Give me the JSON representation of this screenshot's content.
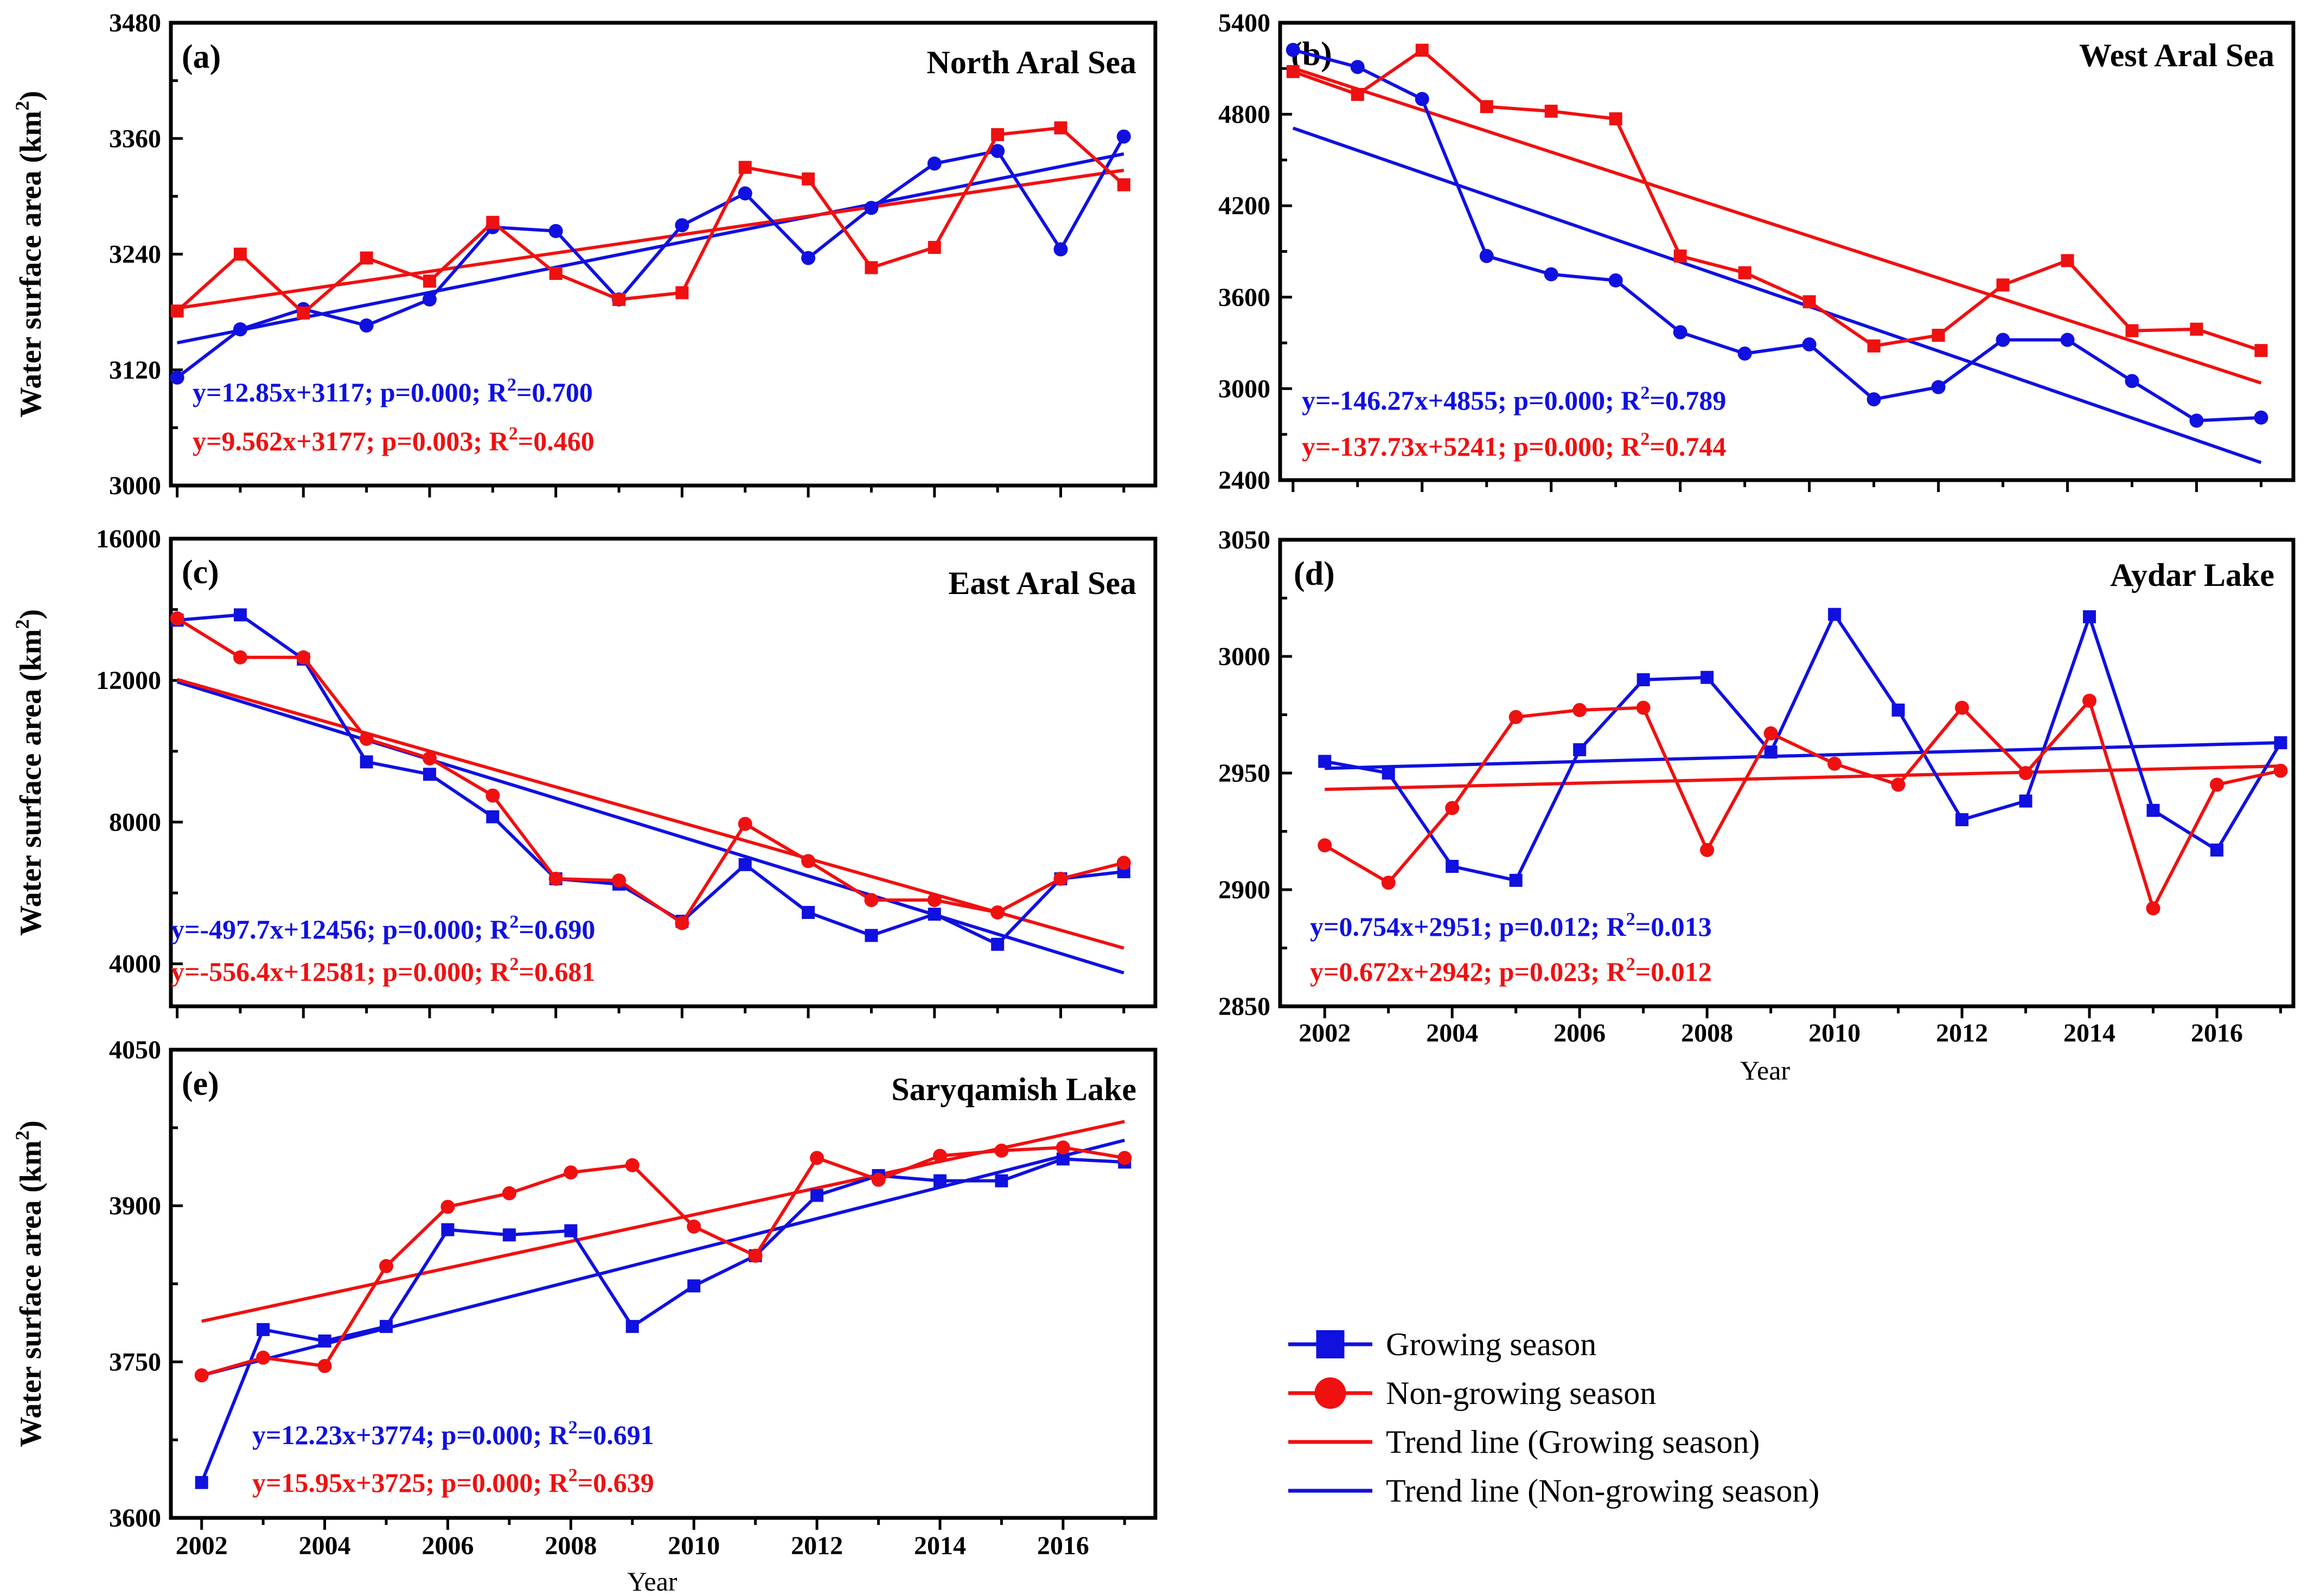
{
  "colors": {
    "blue": "#1010e0",
    "red": "#f01010"
  },
  "chart_data": [
    {
      "id": "a",
      "type": "line",
      "tag": "(a)",
      "title": "North Aral Sea",
      "ylabel": "Water surface area (km",
      "ylabel_sup": "2",
      "ylabel_close": ")",
      "xlabel": "",
      "xlim": [
        2001.9,
        2017.5
      ],
      "ylim": [
        3000,
        3480
      ],
      "yticks": [
        "3000",
        "3120",
        "3240",
        "3360",
        "3480"
      ],
      "xticks": [],
      "x": [
        2002,
        2003,
        2004,
        2005,
        2006,
        2007,
        2008,
        2009,
        2010,
        2011,
        2012,
        2013,
        2014,
        2015,
        2016,
        2017
      ],
      "series": [
        {
          "name": "Growing season",
          "color": "blue",
          "marker": "circle",
          "values": [
            3112,
            3162,
            3183,
            3166,
            3193,
            3268,
            3264,
            3193,
            3270,
            3303,
            3236,
            3288,
            3334,
            3347,
            3245,
            3362
          ]
        },
        {
          "name": "Non-growing season",
          "color": "red",
          "marker": "square",
          "values": [
            3181,
            3240,
            3179,
            3236,
            3212,
            3273,
            3220,
            3193,
            3200,
            3330,
            3318,
            3226,
            3247,
            3364,
            3371,
            3312
          ]
        }
      ],
      "trends": [
        {
          "color": "blue",
          "x": [
            2002,
            2017
          ],
          "y": [
            3148,
            3344
          ]
        },
        {
          "color": "red",
          "x": [
            2002,
            2017
          ],
          "y": [
            3184,
            3327
          ]
        }
      ],
      "equations": [
        {
          "color": "blue",
          "pre": "y=12.85x+3117; p=0.000; R",
          "sup": "2",
          "post": "=0.700"
        },
        {
          "color": "red",
          "pre": "y=9.562x+3177; p=0.003; R",
          "sup": "2",
          "post": "=0.460"
        }
      ]
    },
    {
      "id": "b",
      "type": "line",
      "tag": "(b)",
      "title": "West Aral Sea",
      "ylabel": "",
      "ylabel_sup": "",
      "ylabel_close": "",
      "xlabel": "",
      "xlim": [
        2001.8,
        2017.5
      ],
      "ylim": [
        2400,
        5400
      ],
      "yticks": [
        "2400",
        "3000",
        "3600",
        "4200",
        "4800",
        "5400"
      ],
      "xticks": [],
      "x": [
        2002,
        2003,
        2004,
        2005,
        2006,
        2007,
        2008,
        2009,
        2010,
        2011,
        2012,
        2013,
        2014,
        2015,
        2016,
        2017
      ],
      "series": [
        {
          "name": "Growing season",
          "color": "blue",
          "marker": "circle",
          "values": [
            5222,
            5110,
            4900,
            3870,
            3750,
            3710,
            3370,
            3230,
            3290,
            2930,
            3010,
            3320,
            3320,
            3050,
            2790,
            2810
          ]
        },
        {
          "name": "Non-growing season",
          "color": "red",
          "marker": "square",
          "values": [
            5080,
            4930,
            5220,
            4850,
            4820,
            4770,
            3870,
            3760,
            3570,
            3280,
            3350,
            3680,
            3840,
            3380,
            3390,
            3250
          ]
        }
      ],
      "trends": [
        {
          "color": "blue",
          "x": [
            2002,
            2017
          ],
          "y": [
            4709,
            2515
          ]
        },
        {
          "color": "red",
          "x": [
            2002,
            2017
          ],
          "y": [
            5103,
            3037
          ]
        }
      ],
      "equations": [
        {
          "color": "blue",
          "pre": "y=-146.27x+4855; p=0.000; R",
          "sup": "2",
          "post": "=0.789"
        },
        {
          "color": "red",
          "pre": "y=-137.73x+5241; p=0.000; R",
          "sup": "2",
          "post": "=0.744"
        }
      ]
    },
    {
      "id": "c",
      "type": "line",
      "tag": "(c)",
      "title": "East Aral Sea",
      "ylabel": "Water surface area (km",
      "ylabel_sup": "2",
      "ylabel_close": ")",
      "xlabel": "",
      "xlim": [
        2001.9,
        2017.5
      ],
      "ylim": [
        2800,
        16000
      ],
      "yticks": [
        "4000",
        "8000",
        "12000",
        "16000"
      ],
      "xticks": [],
      "x": [
        2002,
        2003,
        2004,
        2005,
        2006,
        2007,
        2008,
        2009,
        2010,
        2011,
        2012,
        2013,
        2014,
        2015,
        2016,
        2017
      ],
      "series": [
        {
          "name": "Growing season",
          "color": "blue",
          "marker": "square",
          "values": [
            13700,
            13850,
            12600,
            9700,
            9350,
            8150,
            6400,
            6250,
            5200,
            6800,
            5450,
            4800,
            5400,
            4550,
            6400,
            6600
          ]
        },
        {
          "name": "Non-growing season",
          "color": "red",
          "marker": "circle",
          "values": [
            13750,
            12650,
            12650,
            10350,
            9800,
            8750,
            6400,
            6350,
            5150,
            7950,
            6900,
            5800,
            5800,
            5450,
            6400,
            6850
          ]
        }
      ],
      "trends": [
        {
          "color": "blue",
          "x": [
            2002,
            2017
          ],
          "y": [
            11958,
            3743
          ]
        },
        {
          "color": "red",
          "x": [
            2002,
            2017
          ],
          "y": [
            12025,
            4443
          ]
        }
      ],
      "equations": [
        {
          "color": "blue",
          "pre": "y=-497.7x+12456; p=0.000; R",
          "sup": "2",
          "post": "=0.690"
        },
        {
          "color": "red",
          "pre": "y=-556.4x+12581; p=0.000; R",
          "sup": "2",
          "post": "=0.681"
        }
      ]
    },
    {
      "id": "d",
      "type": "line",
      "tag": "(d)",
      "title": "Aydar Lake",
      "ylabel": "",
      "ylabel_sup": "",
      "ylabel_close": "",
      "xlabel": "Year",
      "xlim": [
        2001.3,
        2017.2
      ],
      "ylim": [
        2850,
        3050
      ],
      "yticks": [
        "2850",
        "2900",
        "2950",
        "3000",
        "3050"
      ],
      "xticks": [
        "2002",
        "2004",
        "2006",
        "2008",
        "2010",
        "2012",
        "2014",
        "2016"
      ],
      "x": [
        2002,
        2003,
        2004,
        2005,
        2006,
        2007,
        2008,
        2009,
        2010,
        2011,
        2012,
        2013,
        2014,
        2015,
        2016,
        2017
      ],
      "series": [
        {
          "name": "Growing season",
          "color": "blue",
          "marker": "square",
          "values": [
            2955,
            2950,
            2910,
            2904,
            2960,
            2990,
            2991,
            2959,
            3018,
            2977,
            2930,
            2938,
            3017,
            2934,
            2917,
            2963
          ]
        },
        {
          "name": "Non-growing season",
          "color": "red",
          "marker": "circle",
          "values": [
            2919,
            2903,
            2935,
            2974,
            2977,
            2978,
            2917,
            2967,
            2954,
            2945,
            2978,
            2950,
            2981,
            2892,
            2945,
            2951
          ]
        }
      ],
      "trends": [
        {
          "color": "blue",
          "x": [
            2002,
            2017
          ],
          "y": [
            2952,
            2963
          ]
        },
        {
          "color": "red",
          "x": [
            2002,
            2017
          ],
          "y": [
            2943,
            2953
          ]
        }
      ],
      "equations": [
        {
          "color": "blue",
          "pre": "y=0.754x+2951; p=0.012; R",
          "sup": "2",
          "post": "=0.013"
        },
        {
          "color": "red",
          "pre": "y=0.672x+2942; p=0.023; R",
          "sup": "2",
          "post": "=0.012"
        }
      ]
    },
    {
      "id": "e",
      "type": "line",
      "tag": "(e)",
      "title": "Saryqamish Lake",
      "ylabel": "Water surface area (km",
      "ylabel_sup": "2",
      "ylabel_close": ")",
      "xlabel": "Year",
      "xlim": [
        2001.5,
        2017.5
      ],
      "ylim": [
        3600,
        4050
      ],
      "yticks": [
        "3600",
        "3750",
        "3900",
        "4050"
      ],
      "xticks": [
        "2002",
        "2004",
        "2006",
        "2008",
        "2010",
        "2012",
        "2014",
        "2016"
      ],
      "x": [
        2002,
        2003,
        2004,
        2005,
        2006,
        2007,
        2008,
        2009,
        2010,
        2011,
        2012,
        2013,
        2014,
        2015,
        2016,
        2017
      ],
      "series": [
        {
          "name": "Growing season",
          "color": "blue",
          "marker": "square",
          "values": [
            3634,
            3781,
            3770,
            3784,
            3877,
            3872,
            3876,
            3784,
            3823,
            3852,
            3910,
            3929,
            3924,
            3924,
            3945,
            3942
          ]
        },
        {
          "name": "Non-growing season",
          "color": "red",
          "marker": "circle",
          "values": [
            3737,
            3754,
            3746,
            3842,
            3899,
            3912,
            3932,
            3939,
            3880,
            3852,
            3946,
            3925,
            3948,
            3953,
            3956,
            3946
          ]
        }
      ],
      "trends": [
        {
          "color": "blue",
          "x": [
            2002,
            2017
          ],
          "y": [
            3737,
            3963
          ]
        },
        {
          "color": "red",
          "x": [
            2002,
            2017
          ],
          "y": [
            3789,
            3981
          ]
        }
      ],
      "equations": [
        {
          "color": "blue",
          "pre": "y=12.23x+3774; p=0.000; R",
          "sup": "2",
          "post": "=0.691"
        },
        {
          "color": "red",
          "pre": "y=15.95x+3725; p=0.000; R",
          "sup": "2",
          "post": "=0.639"
        }
      ]
    }
  ],
  "legend": {
    "items": [
      {
        "label": "Growing season",
        "color": "blue",
        "kind": "square-marker"
      },
      {
        "label": "Non-growing season",
        "color": "red",
        "kind": "circle-marker"
      },
      {
        "label": "Trend line (Growing season)",
        "color": "red",
        "kind": "line"
      },
      {
        "label": "Trend line (Non-growing season)",
        "color": "blue",
        "kind": "line"
      }
    ]
  }
}
